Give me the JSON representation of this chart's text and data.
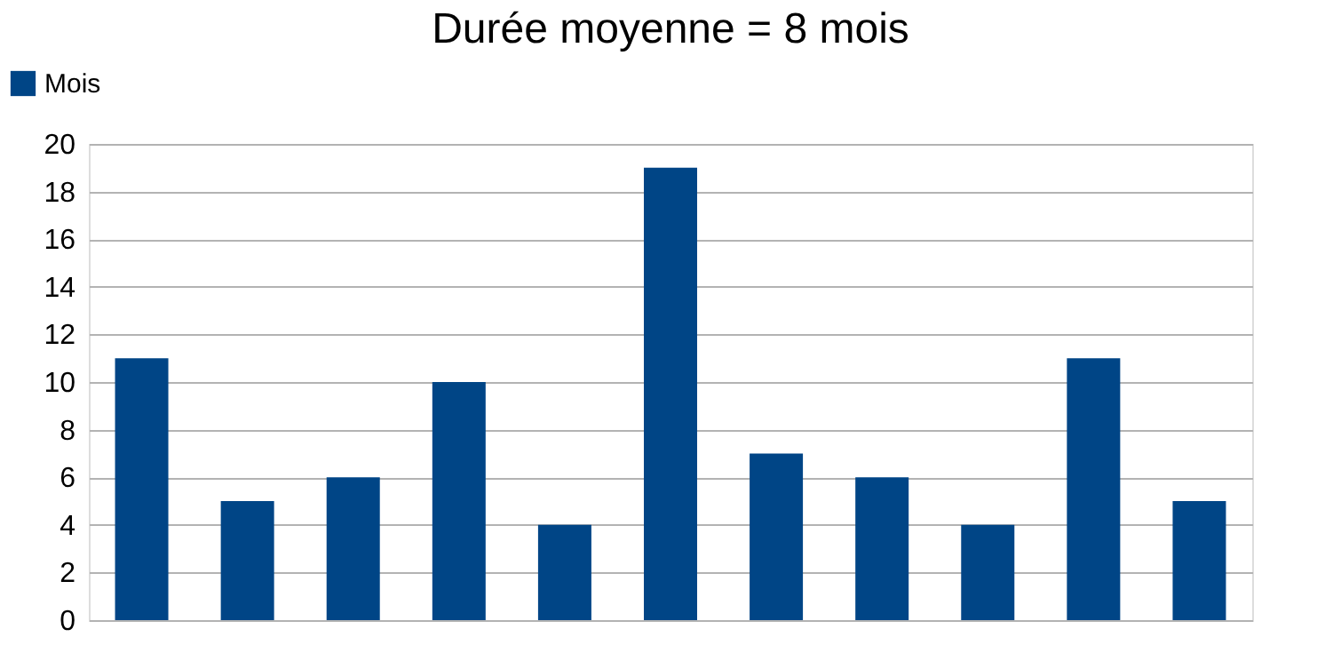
{
  "chart_data": {
    "type": "bar",
    "title": "Durée moyenne = 8 mois",
    "categories": [
      null,
      null,
      null,
      null,
      null,
      null,
      null,
      null,
      null,
      null,
      null
    ],
    "series": [
      {
        "name": "Mois",
        "color": "#004586",
        "values": [
          11,
          5,
          6,
          10,
          4,
          19,
          7,
          6,
          4,
          11,
          5
        ]
      }
    ],
    "ylim": [
      0,
      20
    ],
    "yticks": [
      0,
      2,
      4,
      6,
      8,
      10,
      12,
      14,
      16,
      18,
      20
    ],
    "grid": "y",
    "legend": "top left",
    "tick_labels": "y"
  }
}
